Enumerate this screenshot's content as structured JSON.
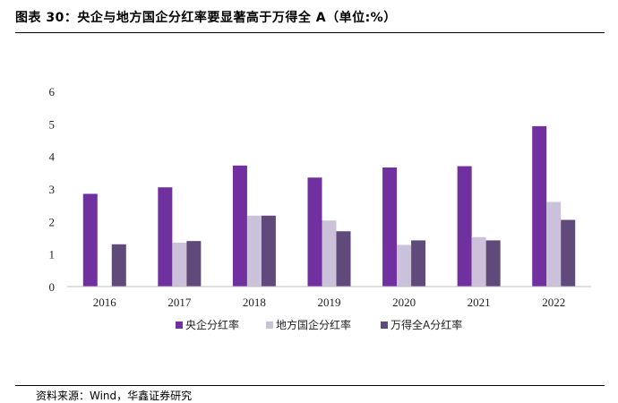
{
  "header": {
    "title": "图表 30：央企与地方国企分红率要显著高于万得全 A（单位:%）"
  },
  "footer": {
    "source": "资料来源：Wind，华鑫证券研究"
  },
  "chart_data": {
    "type": "bar",
    "categories": [
      "2016",
      "2017",
      "2018",
      "2019",
      "2020",
      "2021",
      "2022"
    ],
    "series": [
      {
        "name": "央企分红率",
        "color": "#7030A0",
        "values": [
          2.85,
          3.05,
          3.72,
          3.35,
          3.66,
          3.7,
          4.93
        ]
      },
      {
        "name": "地方国企分红率",
        "color": "#CCC1DA",
        "values": [
          null,
          1.35,
          2.18,
          2.03,
          1.28,
          1.52,
          2.6
        ]
      },
      {
        "name": "万得全A分红率",
        "color": "#604A7B",
        "values": [
          1.3,
          1.4,
          2.18,
          1.7,
          1.42,
          1.42,
          2.05
        ]
      }
    ],
    "ylim": [
      0,
      6
    ],
    "yticks": [
      "0",
      "1",
      "2",
      "3",
      "4",
      "5",
      "6"
    ],
    "grid": false,
    "legend_position": "bottom"
  }
}
